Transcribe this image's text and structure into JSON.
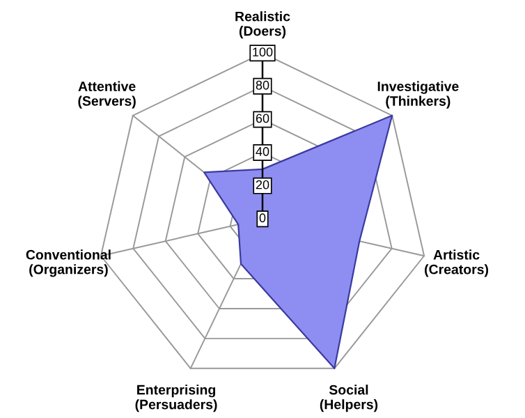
{
  "chart_data": {
    "type": "radar",
    "categories": [
      "Realistic\n(Doers)",
      "Investigative\n(Thinkers)",
      "Artistic\n(Creators)",
      "Social\n(Helpers)",
      "Enterprising\n(Persuaders)",
      "Conventional\n(Organizers)",
      "Attentive\n(Servers)"
    ],
    "series": [
      {
        "color": "#8e8ef2",
        "values": [
          30,
          100,
          60,
          100,
          30,
          15,
          45
        ]
      }
    ],
    "ylim": [
      0,
      100
    ],
    "yticks": [
      0,
      20,
      40,
      60,
      80,
      100
    ],
    "grid": true
  }
}
